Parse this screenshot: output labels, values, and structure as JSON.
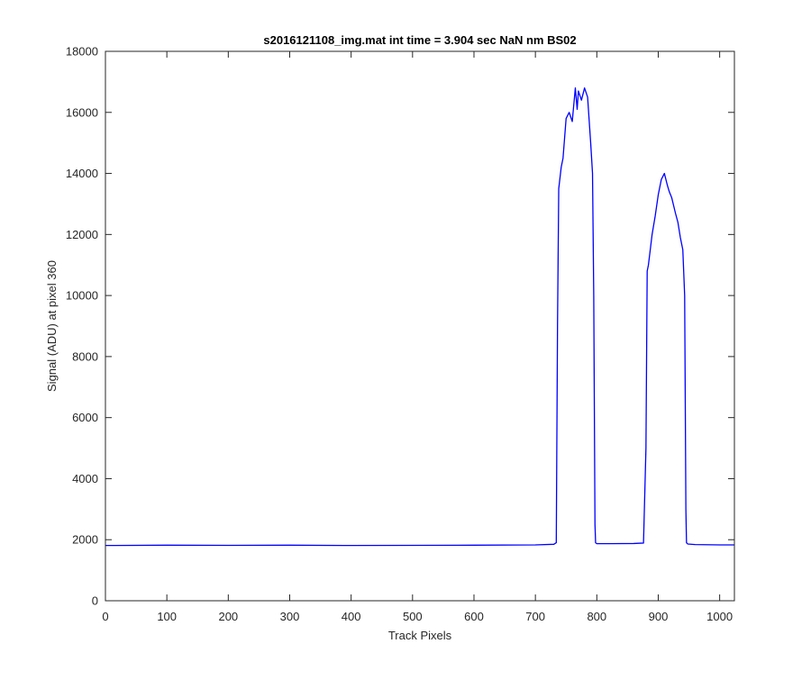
{
  "chart_data": {
    "type": "line",
    "title": "s2016121108_img.mat int time = 3.904 sec  NaN nm BS02",
    "xlabel": "Track Pixels",
    "ylabel": "Signal (ADU) at pixel 360",
    "xlim": [
      0,
      1024
    ],
    "ylim": [
      0,
      18000
    ],
    "x_ticks": [
      0,
      100,
      200,
      300,
      400,
      500,
      600,
      700,
      800,
      900,
      1000
    ],
    "y_ticks": [
      0,
      2000,
      4000,
      6000,
      8000,
      10000,
      12000,
      14000,
      16000,
      18000
    ],
    "grid": false,
    "legend": "none",
    "line_color": "#0000ff",
    "series": [
      {
        "x": [
          0,
          100,
          200,
          300,
          400,
          500,
          600,
          700,
          730,
          734,
          736,
          738,
          742,
          745,
          750,
          755,
          760,
          765,
          768,
          770,
          775,
          780,
          785,
          790,
          793,
          795,
          797,
          798,
          800,
          820,
          860,
          876,
          880,
          882,
          884,
          887,
          890,
          895,
          900,
          905,
          910,
          915,
          918,
          922,
          928,
          932,
          936,
          940,
          943,
          945,
          946,
          948,
          960,
          1000,
          1024
        ],
        "y": [
          1810,
          1820,
          1815,
          1820,
          1810,
          1815,
          1820,
          1830,
          1850,
          1900,
          9000,
          13500,
          14200,
          14500,
          15800,
          16000,
          15700,
          16800,
          16100,
          16700,
          16400,
          16800,
          16500,
          15000,
          14000,
          10000,
          2500,
          1900,
          1870,
          1870,
          1875,
          1890,
          5000,
          10800,
          11000,
          11500,
          12000,
          12600,
          13300,
          13800,
          14000,
          13600,
          13400,
          13200,
          12700,
          12400,
          11900,
          11500,
          10000,
          3000,
          1900,
          1860,
          1840,
          1830,
          1830
        ]
      }
    ]
  }
}
